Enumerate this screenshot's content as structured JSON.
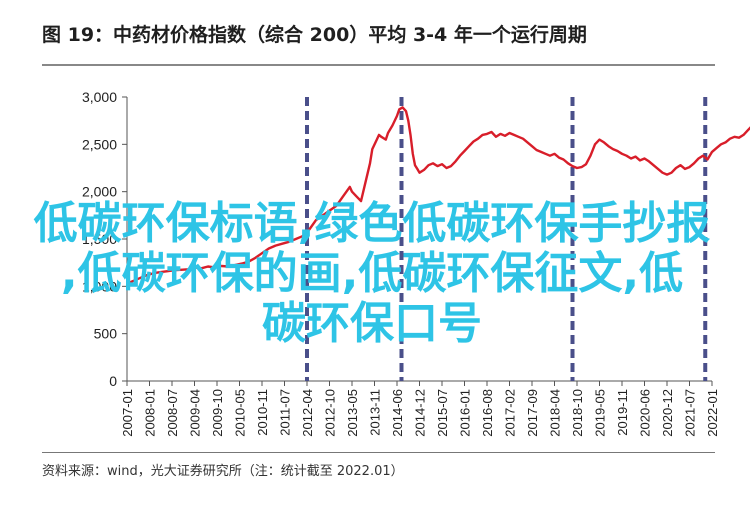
{
  "title": "图 19：中药材价格指数（综合 200）平均 3-4 年一个运行周期",
  "source": "资料来源：wind，光大证券研究所（注：统计截至 2022.01）",
  "watermark_lines": [
    "低碳环保标语,绿色低碳环保手抄报",
    ",低碳环保的画,低碳环保征文,低",
    "碳环保口号"
  ],
  "colors": {
    "line": "#d81e2a",
    "cycle_marker": "#4a4f8a",
    "watermark": "#2ec4e6",
    "axis": "#555555"
  },
  "chart_data": {
    "type": "line",
    "title": "",
    "xlabel": "",
    "ylabel": "",
    "ylim": [
      0,
      3000
    ],
    "yticks": [
      0,
      500,
      1000,
      1500,
      2000,
      2500,
      3000
    ],
    "ytick_labels": [
      "0",
      "500",
      "1,000",
      "1,500",
      "2,000",
      "2,500",
      "3,000"
    ],
    "xtick_labels": [
      "2007-01",
      "2008-01",
      "2008-07",
      "2009-04",
      "2009-10",
      "2010-05",
      "2010-11",
      "2011-07",
      "2012-04",
      "2012-10",
      "2013-05",
      "2013-11",
      "2014-06",
      "2014-12",
      "2015-07",
      "2016-01",
      "2016-08",
      "2017-02",
      "2017-09",
      "2018-04",
      "2018-10",
      "2019-05",
      "2019-11",
      "2020-06",
      "2020-12",
      "2021-07",
      "2022-01"
    ],
    "grid": false,
    "cycle_markers_x": [
      8,
      12.2,
      19.8,
      25.7
    ],
    "series": [
      {
        "values": [
          [
            0,
            1030
          ],
          [
            0.3,
            1060
          ],
          [
            0.6,
            1090
          ],
          [
            0.9,
            1120
          ],
          [
            1.2,
            1140
          ],
          [
            1.5,
            1150
          ],
          [
            1.8,
            1160
          ],
          [
            2.1,
            1170
          ],
          [
            2.4,
            1175
          ],
          [
            2.7,
            1180
          ],
          [
            3.0,
            1200
          ],
          [
            3.3,
            1190
          ],
          [
            3.6,
            1210
          ],
          [
            3.9,
            1200
          ],
          [
            4.2,
            1215
          ],
          [
            4.5,
            1210
          ],
          [
            4.8,
            1225
          ],
          [
            5.1,
            1240
          ],
          [
            5.4,
            1260
          ],
          [
            5.7,
            1300
          ],
          [
            6.0,
            1350
          ],
          [
            6.3,
            1400
          ],
          [
            6.6,
            1430
          ],
          [
            6.9,
            1450
          ],
          [
            7.2,
            1470
          ],
          [
            7.5,
            1500
          ],
          [
            7.8,
            1530
          ],
          [
            8.1,
            1600
          ],
          [
            8.4,
            1700
          ],
          [
            8.7,
            1750
          ],
          [
            9.0,
            1800
          ],
          [
            9.3,
            1850
          ],
          [
            9.6,
            1950
          ],
          [
            9.9,
            2050
          ],
          [
            10.0,
            2000
          ],
          [
            10.2,
            1950
          ],
          [
            10.4,
            1900
          ],
          [
            10.6,
            2100
          ],
          [
            10.8,
            2300
          ],
          [
            10.9,
            2450
          ],
          [
            11.1,
            2550
          ],
          [
            11.2,
            2600
          ],
          [
            11.3,
            2580
          ],
          [
            11.5,
            2550
          ],
          [
            11.6,
            2620
          ],
          [
            11.8,
            2700
          ],
          [
            12.0,
            2800
          ],
          [
            12.1,
            2870
          ],
          [
            12.25,
            2890
          ],
          [
            12.4,
            2850
          ],
          [
            12.5,
            2750
          ],
          [
            12.6,
            2600
          ],
          [
            12.7,
            2400
          ],
          [
            12.8,
            2280
          ],
          [
            12.9,
            2240
          ],
          [
            13.0,
            2200
          ],
          [
            13.2,
            2230
          ],
          [
            13.4,
            2280
          ],
          [
            13.6,
            2300
          ],
          [
            13.8,
            2270
          ],
          [
            14.0,
            2290
          ],
          [
            14.2,
            2250
          ],
          [
            14.4,
            2270
          ],
          [
            14.6,
            2320
          ],
          [
            14.8,
            2380
          ],
          [
            15.0,
            2430
          ],
          [
            15.2,
            2480
          ],
          [
            15.4,
            2530
          ],
          [
            15.6,
            2560
          ],
          [
            15.8,
            2600
          ],
          [
            16.0,
            2610
          ],
          [
            16.2,
            2630
          ],
          [
            16.4,
            2580
          ],
          [
            16.6,
            2610
          ],
          [
            16.8,
            2590
          ],
          [
            17.0,
            2620
          ],
          [
            17.2,
            2600
          ],
          [
            17.4,
            2580
          ],
          [
            17.6,
            2560
          ],
          [
            17.8,
            2520
          ],
          [
            18.0,
            2480
          ],
          [
            18.2,
            2440
          ],
          [
            18.4,
            2420
          ],
          [
            18.6,
            2400
          ],
          [
            18.8,
            2380
          ],
          [
            19.0,
            2400
          ],
          [
            19.2,
            2360
          ],
          [
            19.4,
            2340
          ],
          [
            19.6,
            2300
          ],
          [
            19.8,
            2270
          ],
          [
            20.0,
            2250
          ],
          [
            20.2,
            2260
          ],
          [
            20.4,
            2290
          ],
          [
            20.6,
            2380
          ],
          [
            20.8,
            2500
          ],
          [
            21.0,
            2550
          ],
          [
            21.2,
            2520
          ],
          [
            21.4,
            2480
          ],
          [
            21.6,
            2450
          ],
          [
            21.8,
            2430
          ],
          [
            22.0,
            2400
          ],
          [
            22.2,
            2380
          ],
          [
            22.4,
            2350
          ],
          [
            22.6,
            2370
          ],
          [
            22.8,
            2330
          ],
          [
            23.0,
            2350
          ],
          [
            23.2,
            2320
          ],
          [
            23.4,
            2280
          ],
          [
            23.6,
            2240
          ],
          [
            23.8,
            2200
          ],
          [
            24.0,
            2180
          ],
          [
            24.2,
            2200
          ],
          [
            24.4,
            2250
          ],
          [
            24.6,
            2280
          ],
          [
            24.8,
            2240
          ],
          [
            25.0,
            2260
          ],
          [
            25.2,
            2300
          ],
          [
            25.4,
            2350
          ],
          [
            25.6,
            2380
          ],
          [
            25.8,
            2340
          ],
          [
            26.0,
            2420
          ],
          [
            26.2,
            2460
          ],
          [
            26.4,
            2500
          ],
          [
            26.6,
            2520
          ],
          [
            26.8,
            2560
          ],
          [
            27.0,
            2580
          ],
          [
            27.2,
            2570
          ],
          [
            27.4,
            2600
          ],
          [
            27.6,
            2650
          ],
          [
            27.8,
            2700
          ],
          [
            28.0,
            2720
          ]
        ]
      }
    ]
  }
}
